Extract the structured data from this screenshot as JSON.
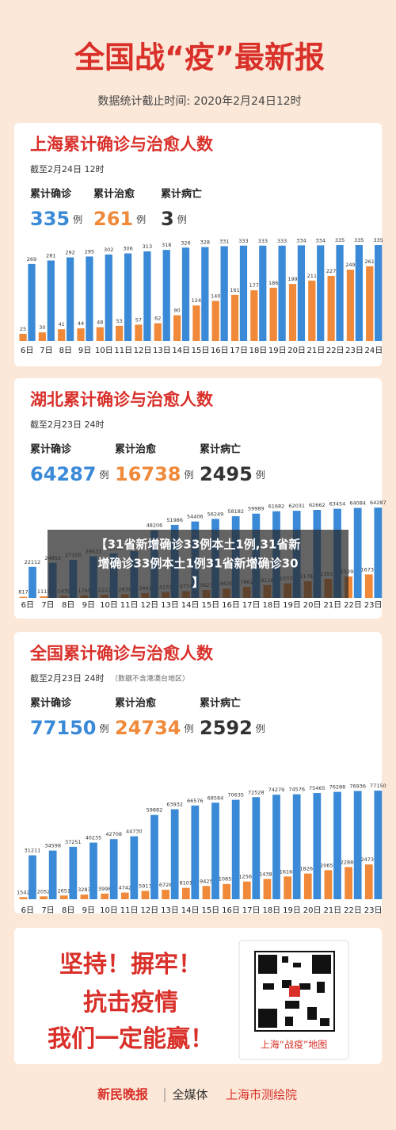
{
  "header": {
    "title": "全国战“疫”最新报",
    "subtitle": "数据统计截止时间: 2020年2月24日12时"
  },
  "chart_data": [
    {
      "type": "bar",
      "title": "上海累计确诊与治愈人数",
      "subtitle": "截至2月24日 12时",
      "stats": [
        {
          "label": "累计确诊",
          "value": 335,
          "unit": "例",
          "color": "#3a8ad8"
        },
        {
          "label": "累计治愈",
          "value": 261,
          "unit": "例",
          "color": "#f08a3a"
        },
        {
          "label": "累计病亡",
          "value": 3,
          "unit": "例",
          "color": "#333333"
        }
      ],
      "categories": [
        "6日",
        "7日",
        "8日",
        "9日",
        "10日",
        "11日",
        "12日",
        "13日",
        "14日",
        "15日",
        "16日",
        "17日",
        "18日",
        "19日",
        "20日",
        "21日",
        "22日",
        "23日",
        "24日"
      ],
      "series": [
        {
          "color": "#f08a3a",
          "values": [
            25,
            30,
            41,
            44,
            48,
            53,
            57,
            62,
            90,
            124,
            140,
            161,
            177,
            186,
            199,
            211,
            227,
            249,
            261
          ]
        },
        {
          "color": "#3a8ad8",
          "values": [
            269,
            281,
            292,
            295,
            302,
            306,
            313,
            318,
            326,
            328,
            331,
            333,
            333,
            333,
            334,
            334,
            335,
            335,
            335
          ]
        }
      ],
      "ylim": [
        0,
        360
      ]
    },
    {
      "type": "bar",
      "title": "湖北累计确诊与治愈人数",
      "subtitle": "截至2月23日 24时",
      "stats": [
        {
          "label": "累计确诊",
          "value": 64287,
          "unit": "例",
          "color": "#3a8ad8"
        },
        {
          "label": "累计治愈",
          "value": 16738,
          "unit": "例",
          "color": "#f08a3a"
        },
        {
          "label": "累计病亡",
          "value": 2495,
          "unit": "例",
          "color": "#333333"
        }
      ],
      "categories": [
        "6日",
        "7日",
        "8日",
        "9日",
        "10日",
        "11日",
        "12日",
        "13日",
        "14日",
        "15日",
        "16日",
        "17日",
        "18日",
        "19日",
        "20日",
        "21日",
        "22日",
        "23日"
      ],
      "series": [
        {
          "color": "#f08a3a",
          "values": [
            817,
            1115,
            1439,
            1795,
            2222,
            2639,
            3441,
            4131,
            4774,
            5623,
            6639,
            7862,
            9128,
            10337,
            11788,
            13557,
            15299,
            16738
          ]
        },
        {
          "color": "#3a8ad8",
          "values": [
            22112,
            24953,
            27100,
            29631,
            31728,
            33366,
            48206,
            51986,
            54406,
            56249,
            58182,
            59989,
            61682,
            62031,
            62662,
            63454,
            64084,
            64287
          ]
        }
      ],
      "ylim": [
        0,
        70000
      ]
    },
    {
      "type": "bar",
      "title": "全国累计确诊与治愈人数",
      "subtitle": "截至2月23日 24时",
      "note": "（数据不含港澳台地区）",
      "stats": [
        {
          "label": "累计确诊",
          "value": 77150,
          "unit": "例",
          "color": "#3a8ad8"
        },
        {
          "label": "累计治愈",
          "value": 24734,
          "unit": "例",
          "color": "#f08a3a"
        },
        {
          "label": "累计病亡",
          "value": 2592,
          "unit": "例",
          "color": "#333333"
        }
      ],
      "categories": [
        "6日",
        "7日",
        "8日",
        "9日",
        "10日",
        "11日",
        "12日",
        "13日",
        "14日",
        "15日",
        "16日",
        "17日",
        "18日",
        "19日",
        "20日",
        "21日",
        "22日",
        "23日"
      ],
      "series": [
        {
          "color": "#f08a3a",
          "values": [
            1542,
            2052,
            2651,
            3283,
            3998,
            4742,
            5913,
            6728,
            8101,
            9425,
            10853,
            12561,
            14387,
            16168,
            18264,
            20659,
            22888,
            24734
          ]
        },
        {
          "color": "#3a8ad8",
          "values": [
            31211,
            34598,
            37251,
            40235,
            42708,
            44730,
            59882,
            63932,
            66576,
            68584,
            70635,
            72528,
            74279,
            74576,
            75465,
            76288,
            76936,
            77150
          ]
        }
      ],
      "ylim": [
        0,
        80000
      ]
    }
  ],
  "slogans": [
    "坚持！摒牢！",
    "抗击疫情",
    "我们一定能赢！"
  ],
  "qr_caption": "上海“战疫”地图",
  "footer": [
    "新民晚报",
    "全媒体",
    "上海市测绘院"
  ],
  "overlay": [
    "【31省新增确诊33例本土1例,31省新",
    "增确诊33例本土1例31省新增确诊30",
    "】"
  ]
}
